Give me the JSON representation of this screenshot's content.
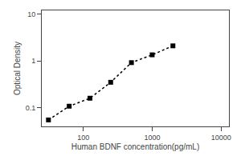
{
  "chart_data": {
    "type": "line",
    "x": [
      31.25,
      62.5,
      125,
      250,
      500,
      1000,
      2000
    ],
    "values": [
      0.055,
      0.108,
      0.16,
      0.35,
      0.92,
      1.35,
      2.1
    ],
    "xlabel": "Human BDNF concentration(pg/mL)",
    "ylabel": "Optical Density",
    "xlim": [
      25,
      13000
    ],
    "ylim": [
      0.04,
      12
    ],
    "xticks": [
      100,
      1000,
      10000
    ],
    "yticks": [
      0.1,
      1,
      10
    ],
    "log": true,
    "grid": false,
    "color": "black",
    "marker": "square",
    "line_style": "dotted"
  }
}
